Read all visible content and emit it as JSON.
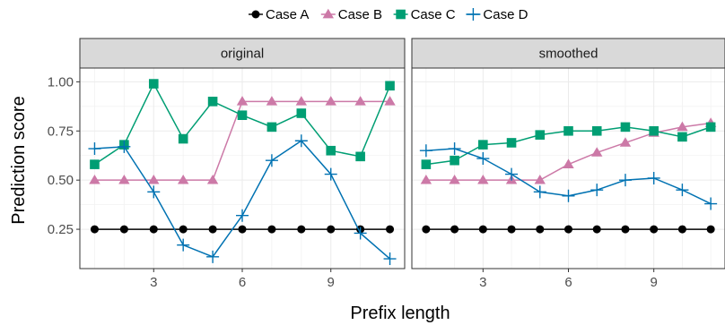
{
  "chart_data": {
    "type": "line",
    "xlabel": "Prefix length",
    "ylabel": "Prediction score",
    "xlim": [
      0.5,
      11.5
    ],
    "ylim": [
      0.05,
      1.07
    ],
    "x_ticks": [
      3,
      6,
      9
    ],
    "y_ticks": [
      0.25,
      0.5,
      0.75,
      1.0
    ],
    "y_tick_labels": [
      "0.25",
      "0.50",
      "0.75",
      "1.00"
    ],
    "grid": true,
    "legend_position": "top",
    "x": [
      1,
      2,
      3,
      4,
      5,
      6,
      7,
      8,
      9,
      10,
      11
    ],
    "legend": [
      {
        "name": "Case A",
        "color": "#000000",
        "marker": "circle"
      },
      {
        "name": "Case B",
        "color": "#CC79A7",
        "marker": "triangle"
      },
      {
        "name": "Case C",
        "color": "#009E73",
        "marker": "square"
      },
      {
        "name": "Case D",
        "color": "#0072B2",
        "marker": "plus"
      }
    ],
    "facets": [
      {
        "label": "original",
        "series": [
          {
            "name": "Case A",
            "values": [
              0.25,
              0.25,
              0.25,
              0.25,
              0.25,
              0.25,
              0.25,
              0.25,
              0.25,
              0.25,
              0.25
            ]
          },
          {
            "name": "Case B",
            "values": [
              0.5,
              0.5,
              0.5,
              0.5,
              0.5,
              0.9,
              0.9,
              0.9,
              0.9,
              0.9,
              0.9
            ]
          },
          {
            "name": "Case C",
            "values": [
              0.58,
              0.68,
              0.99,
              0.71,
              0.9,
              0.83,
              0.77,
              0.84,
              0.65,
              0.62,
              0.98
            ]
          },
          {
            "name": "Case D",
            "values": [
              0.66,
              0.67,
              0.44,
              0.17,
              0.11,
              0.32,
              0.6,
              0.7,
              0.53,
              0.23,
              0.1
            ]
          }
        ]
      },
      {
        "label": "smoothed",
        "series": [
          {
            "name": "Case A",
            "values": [
              0.25,
              0.25,
              0.25,
              0.25,
              0.25,
              0.25,
              0.25,
              0.25,
              0.25,
              0.25,
              0.25
            ]
          },
          {
            "name": "Case B",
            "values": [
              0.5,
              0.5,
              0.5,
              0.5,
              0.5,
              0.58,
              0.64,
              0.69,
              0.74,
              0.77,
              0.79
            ]
          },
          {
            "name": "Case C",
            "values": [
              0.58,
              0.6,
              0.68,
              0.69,
              0.73,
              0.75,
              0.75,
              0.77,
              0.75,
              0.72,
              0.77
            ]
          },
          {
            "name": "Case D",
            "values": [
              0.65,
              0.66,
              0.61,
              0.53,
              0.44,
              0.42,
              0.45,
              0.5,
              0.51,
              0.45,
              0.38
            ]
          }
        ]
      }
    ]
  }
}
